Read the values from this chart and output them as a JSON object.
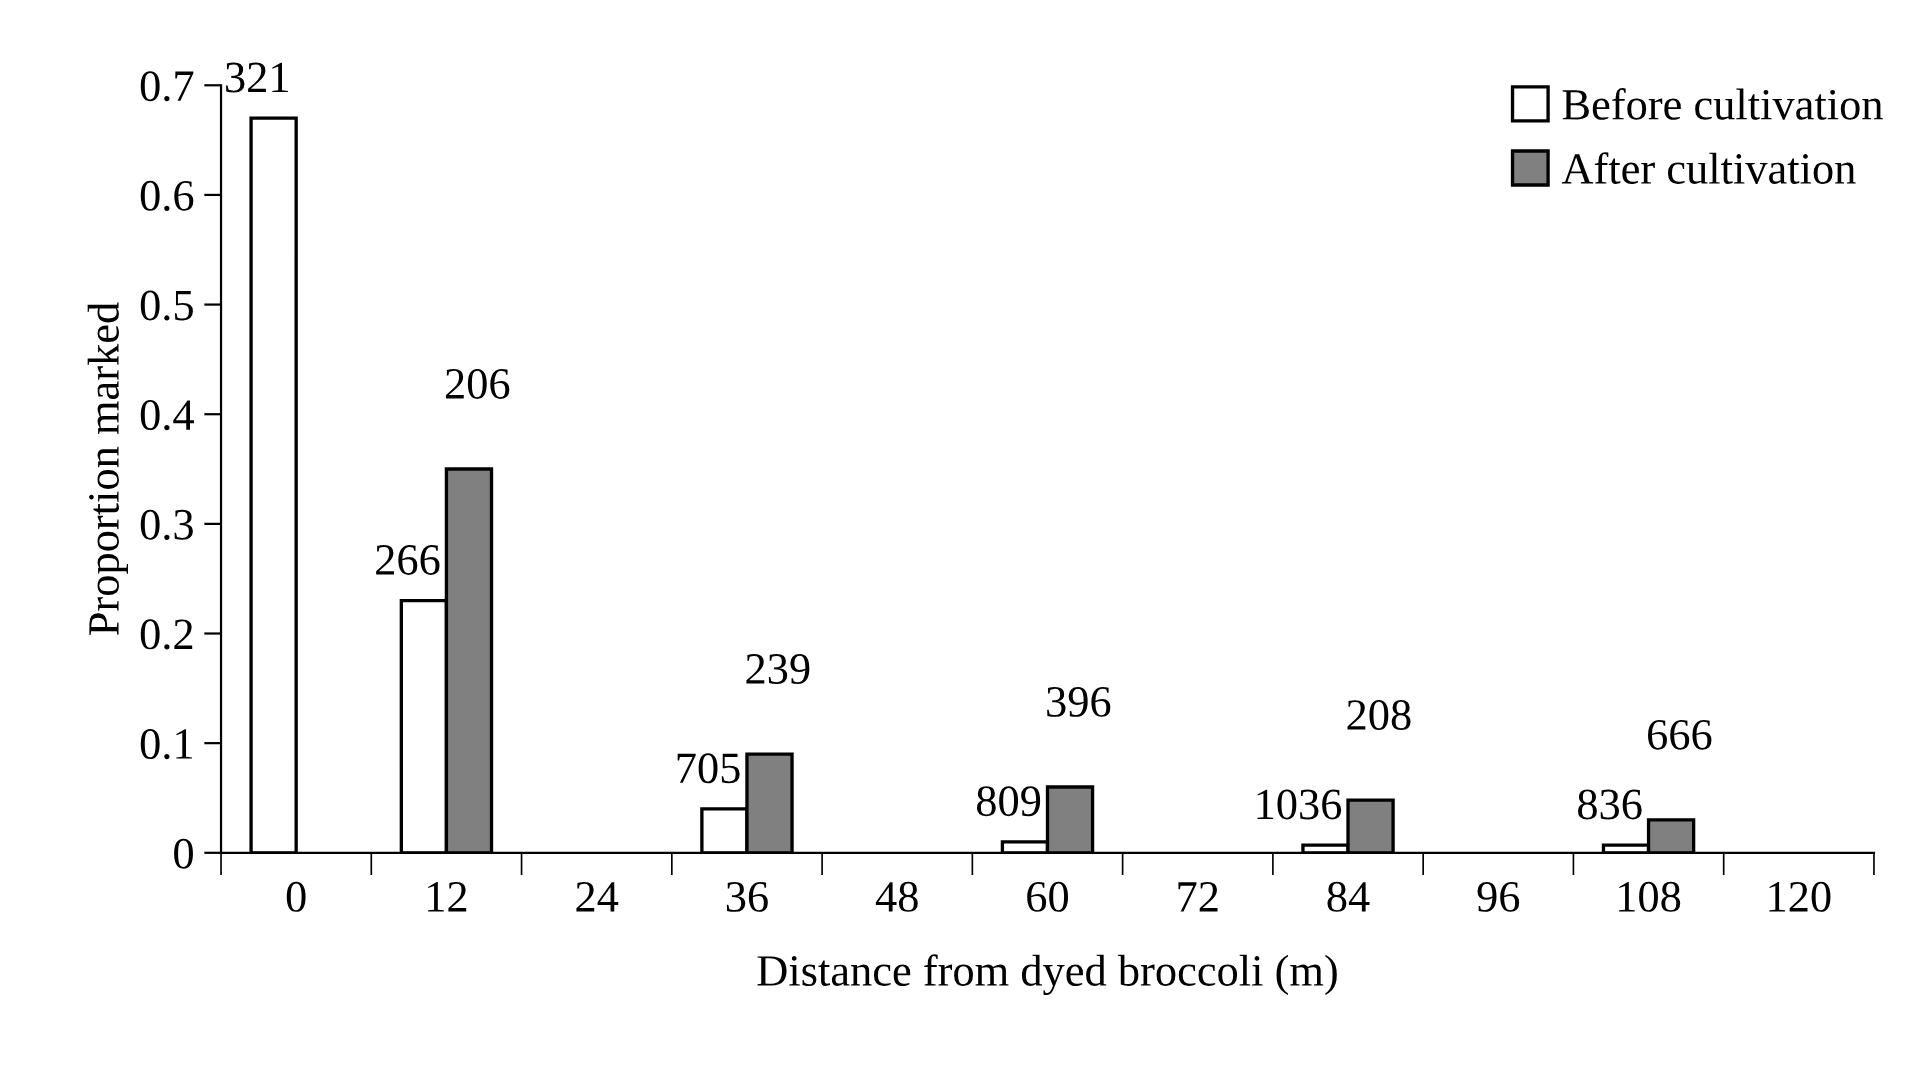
{
  "chart_data": {
    "type": "bar",
    "xlabel": "Distance from dyed broccoli (m)",
    "ylabel": "Proportion marked",
    "categories": [
      "0",
      "12",
      "24",
      "36",
      "48",
      "60",
      "72",
      "84",
      "96",
      "108",
      "120"
    ],
    "series": [
      {
        "name": "Before cultivation",
        "color": "#ffffff",
        "values": [
          0.67,
          0.23,
          null,
          0.04,
          null,
          0.01,
          null,
          0.007,
          null,
          0.007,
          null
        ]
      },
      {
        "name": "After cultivation",
        "color": "#808080",
        "values": [
          null,
          0.35,
          null,
          0.09,
          null,
          0.06,
          null,
          0.048,
          null,
          0.03,
          null
        ]
      }
    ],
    "annotations": [
      {
        "text": "321",
        "x": "0",
        "y": 0.67
      },
      {
        "text": "266",
        "x": "12",
        "y": 0.23
      },
      {
        "text": "206",
        "x": "12",
        "y": 0.35
      },
      {
        "text": "705",
        "x": "36",
        "y": 0.04
      },
      {
        "text": "239",
        "x": "36",
        "y": 0.09
      },
      {
        "text": "809",
        "x": "60",
        "y": 0.01
      },
      {
        "text": "396",
        "x": "60",
        "y": 0.06
      },
      {
        "text": "1036",
        "x": "84",
        "y": 0.007
      },
      {
        "text": "208",
        "x": "84",
        "y": 0.048
      },
      {
        "text": "836",
        "x": "108",
        "y": 0.007
      },
      {
        "text": "666",
        "x": "108",
        "y": 0.03
      }
    ],
    "ylim": [
      0,
      0.7
    ],
    "yticks": [
      0,
      {
        "value": 0.1,
        "label": "0.1"
      },
      {
        "value": 0.2,
        "label": "0.2"
      },
      {
        "value": 0.3,
        "label": "0.3"
      },
      {
        "value": 0.4,
        "label": "0.4"
      },
      {
        "value": 0.5,
        "label": "0.5"
      },
      {
        "value": 0.6,
        "label": "0.6"
      },
      {
        "value": 0.7,
        "label": "0.7"
      }
    ],
    "grid": false,
    "legend": "top right"
  }
}
